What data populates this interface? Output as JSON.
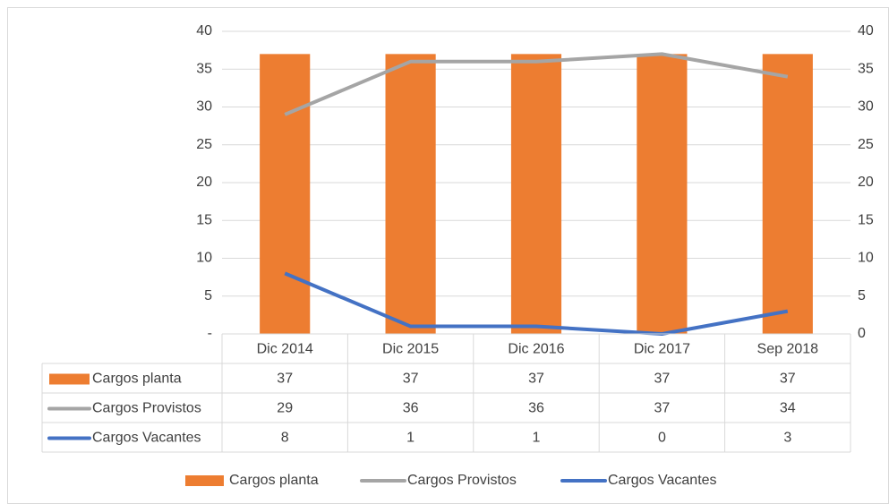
{
  "chart_data": {
    "type": "bar",
    "categories": [
      "Dic 2014",
      "Dic 2015",
      "Dic 2016",
      "Dic 2017",
      "Sep 2018"
    ],
    "series": [
      {
        "name": "Cargos planta",
        "type": "bar",
        "color": "#ed7d31",
        "values": [
          37,
          37,
          37,
          37,
          37
        ]
      },
      {
        "name": "Cargos Provistos",
        "type": "line",
        "color": "#a5a5a5",
        "values": [
          29,
          36,
          36,
          37,
          34
        ]
      },
      {
        "name": "Cargos Vacantes",
        "type": "line",
        "color": "#4472c4",
        "values": [
          8,
          1,
          1,
          0,
          3
        ]
      }
    ],
    "ylim": [
      0,
      40
    ],
    "yticks": [
      {
        "value": 0,
        "label": "-"
      },
      5,
      10,
      15,
      20,
      25,
      30,
      35,
      40
    ],
    "y2lim": [
      0,
      40
    ],
    "y2ticks": [
      0,
      5,
      10,
      15,
      20,
      25,
      30,
      35,
      40
    ],
    "grid": true,
    "legend": "bottom",
    "data_table": true
  }
}
